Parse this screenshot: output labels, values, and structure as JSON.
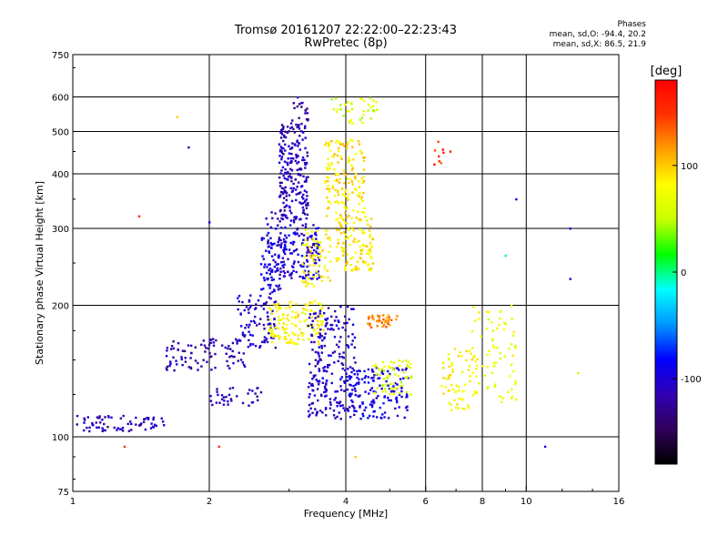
{
  "header": {
    "title": "Tromsø 20161207 22:22:00–22:23:43",
    "subtitle": "RwPretec (8p)",
    "phases_title": "Phases",
    "phases_o": "mean, sd,O: -94.4, 20.2",
    "phases_x": "mean, sd,X: 86.5, 21.9"
  },
  "colorbar": {
    "label": "[deg]",
    "ticks": [
      "100",
      "0",
      "-100"
    ],
    "tick_values": [
      100,
      0,
      -100
    ],
    "range": [
      -180,
      180
    ],
    "colormap": [
      "#000000",
      "#30005a",
      "#3200b4",
      "#0000ff",
      "#0096ff",
      "#00ffff",
      "#00ff00",
      "#c8ff00",
      "#ffff00",
      "#ffa000",
      "#ff3200",
      "#ff0000"
    ]
  },
  "chart_data": {
    "type": "scatter",
    "title": "Tromsø 20161207 22:22:00–22:23:43",
    "subtitle": "RwPretec (8p)",
    "xlabel": "Frequency [MHz]",
    "ylabel": "Stationary phase Virtual Height [km]",
    "x_scale": "log",
    "y_scale": "log",
    "xlim": [
      1,
      16
    ],
    "ylim": [
      75,
      750
    ],
    "x_ticks": [
      1,
      2,
      4,
      6,
      8,
      10,
      16
    ],
    "x_ticklabels": [
      "1",
      "2",
      "4",
      "6",
      "8",
      "10",
      "16"
    ],
    "x_gridlines": [
      2,
      4,
      6,
      8,
      10
    ],
    "y_ticks": [
      75,
      100,
      200,
      300,
      400,
      500,
      600,
      750
    ],
    "y_ticklabels": [
      "75",
      "100",
      "200",
      "300",
      "400",
      "500",
      "600",
      "750"
    ],
    "y_gridlines": [
      100,
      200,
      300,
      400,
      500,
      600
    ],
    "grid": true,
    "color_by": "phase [deg]",
    "clusters": [
      {
        "x_range": [
          1.0,
          1.6
        ],
        "y_range": [
          103,
          112
        ],
        "phase": -110,
        "count": 70
      },
      {
        "x_range": [
          1.6,
          2.4
        ],
        "y_range": [
          142,
          168
        ],
        "phase": -115,
        "count": 90
      },
      {
        "x_range": [
          2.0,
          2.6
        ],
        "y_range": [
          118,
          130
        ],
        "phase": -110,
        "count": 35
      },
      {
        "x_range": [
          2.3,
          2.8
        ],
        "y_range": [
          160,
          215
        ],
        "phase": -105,
        "count": 90
      },
      {
        "x_range": [
          2.6,
          2.95
        ],
        "y_range": [
          215,
          330
        ],
        "phase": -100,
        "count": 120
      },
      {
        "x_range": [
          2.85,
          3.3
        ],
        "y_range": [
          310,
          520
        ],
        "phase": -110,
        "count": 220
      },
      {
        "x_range": [
          2.9,
          3.5
        ],
        "y_range": [
          230,
          310
        ],
        "phase": -100,
        "count": 120
      },
      {
        "x_range": [
          3.0,
          3.3
        ],
        "y_range": [
          520,
          600
        ],
        "phase": -120,
        "count": 20
      },
      {
        "x_range": [
          2.7,
          3.6
        ],
        "y_range": [
          163,
          205
        ],
        "phase": 80,
        "count": 140
      },
      {
        "x_range": [
          3.2,
          3.7
        ],
        "y_range": [
          220,
          300
        ],
        "phase": 85,
        "count": 70
      },
      {
        "x_range": [
          3.6,
          4.4
        ],
        "y_range": [
          320,
          480
        ],
        "phase": 90,
        "count": 150
      },
      {
        "x_range": [
          3.8,
          4.6
        ],
        "y_range": [
          240,
          320
        ],
        "phase": 88,
        "count": 120
      },
      {
        "x_range": [
          3.7,
          4.7
        ],
        "y_range": [
          520,
          600
        ],
        "phase": 60,
        "count": 40
      },
      {
        "x_range": [
          3.3,
          4.2
        ],
        "y_range": [
          110,
          200
        ],
        "phase": -105,
        "count": 220
      },
      {
        "x_range": [
          4.0,
          5.5
        ],
        "y_range": [
          110,
          145
        ],
        "phase": -95,
        "count": 150
      },
      {
        "x_range": [
          4.4,
          5.2
        ],
        "y_range": [
          178,
          190
        ],
        "phase": 120,
        "count": 40
      },
      {
        "x_range": [
          4.6,
          5.6
        ],
        "y_range": [
          125,
          150
        ],
        "phase": 60,
        "count": 60
      },
      {
        "x_range": [
          6.5,
          7.8
        ],
        "y_range": [
          115,
          160
        ],
        "phase": 80,
        "count": 70
      },
      {
        "x_range": [
          7.6,
          9.5
        ],
        "y_range": [
          120,
          200
        ],
        "phase": 70,
        "count": 70
      },
      {
        "x_range": [
          6.2,
          6.6
        ],
        "y_range": [
          420,
          480
        ],
        "phase": 150,
        "count": 8
      }
    ],
    "outliers": [
      {
        "x": 1.7,
        "y": 540,
        "phase": 100
      },
      {
        "x": 1.3,
        "y": 95,
        "phase": 150
      },
      {
        "x": 2.1,
        "y": 95,
        "phase": 150
      },
      {
        "x": 1.4,
        "y": 320,
        "phase": 150
      },
      {
        "x": 1.8,
        "y": 460,
        "phase": -120
      },
      {
        "x": 2.0,
        "y": 310,
        "phase": -100
      },
      {
        "x": 12.5,
        "y": 300,
        "phase": -100
      },
      {
        "x": 12.5,
        "y": 230,
        "phase": -100
      },
      {
        "x": 11.0,
        "y": 95,
        "phase": -100
      },
      {
        "x": 13.0,
        "y": 140,
        "phase": 50
      },
      {
        "x": 6.8,
        "y": 450,
        "phase": 160
      },
      {
        "x": 9.5,
        "y": 350,
        "phase": -90
      },
      {
        "x": 9.0,
        "y": 260,
        "phase": 0
      },
      {
        "x": 4.2,
        "y": 90,
        "phase": 100
      }
    ]
  }
}
